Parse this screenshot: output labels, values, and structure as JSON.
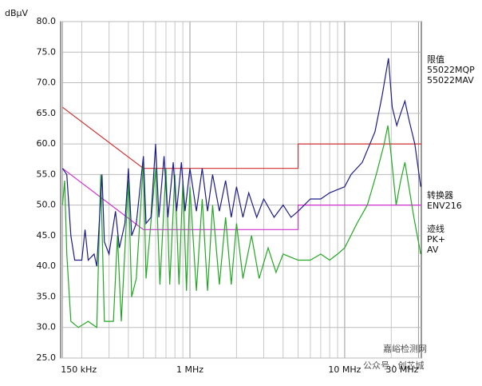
{
  "chart_data": {
    "type": "line",
    "y_label": "dBµV",
    "xscale": "log",
    "xlim": [
      146000,
      31300000
    ],
    "ylim": [
      25,
      80
    ],
    "grid": true,
    "xticks": [
      {
        "value": 150000,
        "label": "150 kHz"
      },
      {
        "value": 1000000,
        "label": "1 MHz"
      },
      {
        "value": 10000000,
        "label": "10 MHz"
      },
      {
        "value": 30000000,
        "label": "30 MHz"
      }
    ],
    "x_minor_grid": [
      200000,
      300000,
      400000,
      500000,
      600000,
      700000,
      800000,
      900000,
      2000000,
      3000000,
      4000000,
      5000000,
      6000000,
      7000000,
      8000000,
      9000000,
      20000000
    ],
    "yticks": [
      {
        "value": 25,
        "label": "25.0"
      },
      {
        "value": 30,
        "label": "30.0"
      },
      {
        "value": 35,
        "label": "35.0"
      },
      {
        "value": 40,
        "label": "40.0"
      },
      {
        "value": 45,
        "label": "45.0"
      },
      {
        "value": 50,
        "label": "50.0"
      },
      {
        "value": 55,
        "label": "55.0"
      },
      {
        "value": 60,
        "label": "60.0"
      },
      {
        "value": 65,
        "label": "65.0"
      },
      {
        "value": 70,
        "label": "70.0"
      },
      {
        "value": 75,
        "label": "75.0"
      },
      {
        "value": 80,
        "label": "80.0"
      }
    ],
    "limit_heading": "限值",
    "transducer_heading": "转换器",
    "transducer_name": "ENV216",
    "trace_heading": "迹线",
    "series": [
      {
        "name": "PK+",
        "color": "#1c1c8a",
        "x": [
          150000,
          160000,
          170000,
          180000,
          200000,
          210000,
          220000,
          240000,
          250000,
          270000,
          280000,
          300000,
          330000,
          350000,
          380000,
          400000,
          420000,
          450000,
          500000,
          520000,
          560000,
          600000,
          630000,
          680000,
          720000,
          780000,
          820000,
          880000,
          930000,
          1000000,
          1100000,
          1200000,
          1300000,
          1400000,
          1550000,
          1700000,
          1850000,
          2000000,
          2200000,
          2400000,
          2700000,
          3000000,
          3500000,
          4000000,
          4500000,
          5000000,
          6000000,
          7000000,
          8000000,
          10000000,
          11000000,
          13000000,
          15700000,
          17500000,
          19200000,
          20300000,
          21700000,
          23000000,
          24500000,
          26000000,
          28400000,
          31000000
        ],
        "values": [
          56,
          55,
          45,
          41,
          41,
          46,
          41,
          42,
          40,
          55,
          44,
          42,
          49,
          43,
          47,
          56,
          45,
          47,
          58,
          47,
          48,
          60,
          48,
          58,
          48,
          57,
          49,
          57,
          49,
          56,
          49,
          56,
          49,
          55,
          49,
          54,
          48,
          53,
          48,
          52,
          48,
          51,
          48,
          50,
          48,
          49,
          51,
          51,
          52,
          53,
          55,
          57,
          62,
          68,
          74,
          66,
          63,
          65,
          67,
          64,
          60,
          53
        ]
      },
      {
        "name": "AV",
        "color": "#22a822",
        "x": [
          150000,
          155000,
          160000,
          170000,
          190000,
          220000,
          250000,
          265000,
          280000,
          320000,
          340000,
          360000,
          400000,
          420000,
          450000,
          500000,
          520000,
          600000,
          640000,
          700000,
          740000,
          800000,
          850000,
          900000,
          950000,
          1000000,
          1100000,
          1200000,
          1300000,
          1400000,
          1550000,
          1700000,
          1850000,
          2000000,
          2200000,
          2500000,
          2800000,
          3200000,
          3600000,
          4000000,
          5000000,
          6000000,
          7000000,
          8000000,
          9000000,
          10000000,
          12000000,
          14000000,
          16000000,
          18000000,
          19000000,
          20000000,
          21500000,
          23000000,
          24500000,
          26000000,
          28000000,
          31000000
        ],
        "values": [
          50,
          54,
          42,
          31,
          30,
          31,
          30,
          55,
          31,
          31,
          45,
          31,
          54,
          35,
          38,
          57,
          38,
          56,
          37,
          56,
          37,
          55,
          37,
          54,
          36,
          53,
          36,
          51,
          36,
          50,
          37,
          48,
          37,
          47,
          38,
          45,
          38,
          43,
          39,
          42,
          41,
          41,
          42,
          41,
          42,
          43,
          47,
          50,
          55,
          60,
          63,
          58,
          50,
          54,
          57,
          53,
          48,
          42
        ]
      },
      {
        "name": "55022MQP",
        "color": "#d03030",
        "x": [
          150000,
          500000,
          5000000,
          5000000,
          31300000
        ],
        "values": [
          66,
          56,
          56,
          60,
          60
        ]
      },
      {
        "name": "55022MAV",
        "color": "#d030d0",
        "x": [
          150000,
          500000,
          5000000,
          5000000,
          31300000
        ],
        "values": [
          56,
          46,
          46,
          50,
          50
        ]
      }
    ],
    "watermark": "嘉峪检测网",
    "watermark_sub": "公众号 · 创芯城"
  }
}
